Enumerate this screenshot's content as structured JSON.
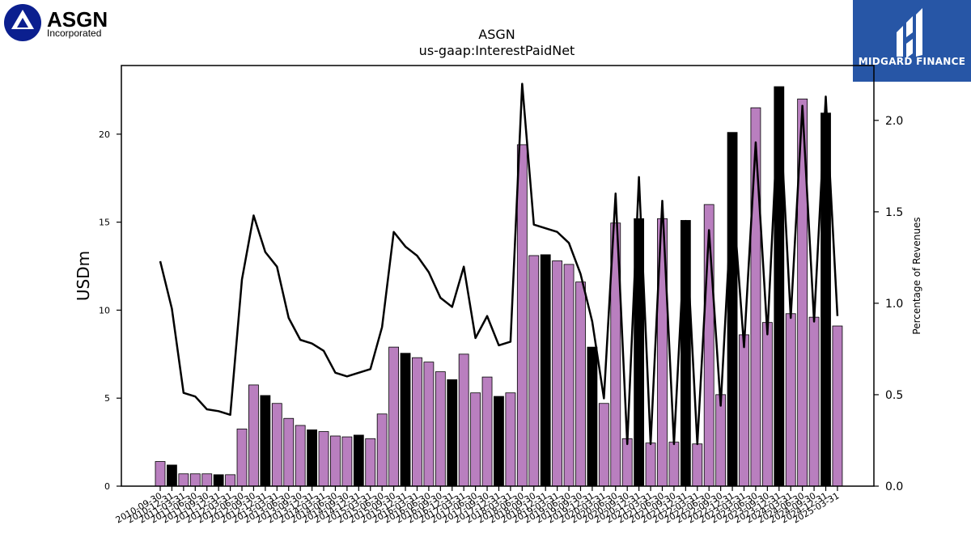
{
  "branding": {
    "left_logo_name": "ASGN",
    "left_logo_sub": "Incorporated",
    "right_logo_name": "MIDGARD FINANCE",
    "right_logo_color": "#2756a6",
    "left_logo_color": "#0b1f8f"
  },
  "chart_data": {
    "type": "bar",
    "title": "ASGN",
    "subtitle": "us-gaap:InterestPaidNet",
    "ylabel": "USDm",
    "y2label": "Percentage of Revenues",
    "ylim": [
      0,
      23.9
    ],
    "y2lim": [
      0,
      2.3
    ],
    "yticks": [
      0,
      5,
      10,
      15,
      20
    ],
    "y2ticks": [
      "0.0",
      "0.5",
      "1.0",
      "1.5",
      "2.0"
    ],
    "colors": {
      "quarterly": "#b97fbf",
      "annual": "#000000",
      "line": "#000000"
    },
    "categories": [
      "2010-09-30",
      "2010-12-31",
      "2011-03-31",
      "2011-06-30",
      "2011-09-30",
      "2011-12-31",
      "2012-03-31",
      "2012-06-30",
      "2012-09-30",
      "2012-12-31",
      "2013-03-31",
      "2013-06-30",
      "2013-09-30",
      "2013-12-31",
      "2014-03-31",
      "2014-06-30",
      "2014-09-30",
      "2014-12-31",
      "2015-03-31",
      "2015-06-30",
      "2015-09-30",
      "2015-12-31",
      "2016-03-31",
      "2016-06-30",
      "2016-09-30",
      "2016-12-31",
      "2017-03-31",
      "2017-06-30",
      "2017-09-30",
      "2017-12-31",
      "2018-03-31",
      "2018-06-30",
      "2018-09-30",
      "2018-12-31",
      "2019-03-31",
      "2019-06-30",
      "2019-09-30",
      "2019-12-31",
      "2020-03-31",
      "2020-06-30",
      "2020-09-30",
      "2020-12-31",
      "2021-03-31",
      "2021-06-30",
      "2021-09-30",
      "2021-12-31",
      "2022-03-31",
      "2022-06-30",
      "2022-09-30",
      "2022-12-31",
      "2023-03-31",
      "2023-06-30",
      "2023-09-30",
      "2023-12-31",
      "2024-03-31",
      "2024-06-30",
      "2024-09-30",
      "2024-12-31",
      "2025-03-31"
    ],
    "series": [
      {
        "values": [
          1.4,
          1.2,
          0.7,
          0.7,
          0.7,
          0.65,
          0.65,
          3.25,
          5.75,
          5.15,
          4.7,
          3.85,
          3.45,
          3.2,
          3.1,
          2.85,
          2.8,
          2.9,
          2.7,
          4.1,
          7.9,
          7.55,
          7.3,
          7.05,
          6.5,
          6.05,
          7.5,
          5.3,
          6.2,
          5.1,
          5.3,
          19.4,
          13.1,
          13.15,
          12.8,
          12.6,
          11.6,
          7.9,
          4.7,
          14.95,
          2.7,
          15.2,
          2.45,
          15.2,
          2.5,
          15.1,
          2.4,
          16.0,
          5.2,
          20.1,
          8.6,
          21.5,
          9.3,
          22.7,
          9.8,
          22.0,
          9.6,
          21.2,
          9.1
        ],
        "annual": [
          false,
          true,
          false,
          false,
          false,
          true,
          false,
          false,
          false,
          true,
          false,
          false,
          false,
          true,
          false,
          false,
          false,
          true,
          false,
          false,
          false,
          true,
          false,
          false,
          false,
          true,
          false,
          false,
          false,
          true,
          false,
          false,
          false,
          true,
          false,
          false,
          false,
          true,
          false,
          false,
          false,
          true,
          false,
          false,
          false,
          true,
          false,
          false,
          false,
          true,
          false,
          false,
          false,
          true,
          false,
          false,
          false,
          true,
          false
        ]
      },
      {
        "axis": "right",
        "values": [
          1.23,
          0.97,
          0.51,
          0.49,
          0.42,
          0.41,
          0.39,
          1.13,
          1.48,
          1.28,
          1.2,
          0.92,
          0.8,
          0.78,
          0.74,
          0.62,
          0.6,
          0.62,
          0.64,
          0.87,
          1.39,
          1.31,
          1.26,
          1.17,
          1.03,
          0.98,
          1.2,
          0.81,
          0.93,
          0.77,
          0.79,
          2.2,
          1.43,
          1.41,
          1.39,
          1.33,
          1.16,
          0.9,
          0.48,
          1.6,
          0.23,
          1.69,
          0.23,
          1.56,
          0.23,
          1.45,
          0.23,
          1.4,
          0.44,
          1.62,
          0.76,
          1.88,
          0.83,
          2.14,
          0.92,
          2.08,
          0.9,
          2.13,
          0.93
        ]
      }
    ]
  }
}
